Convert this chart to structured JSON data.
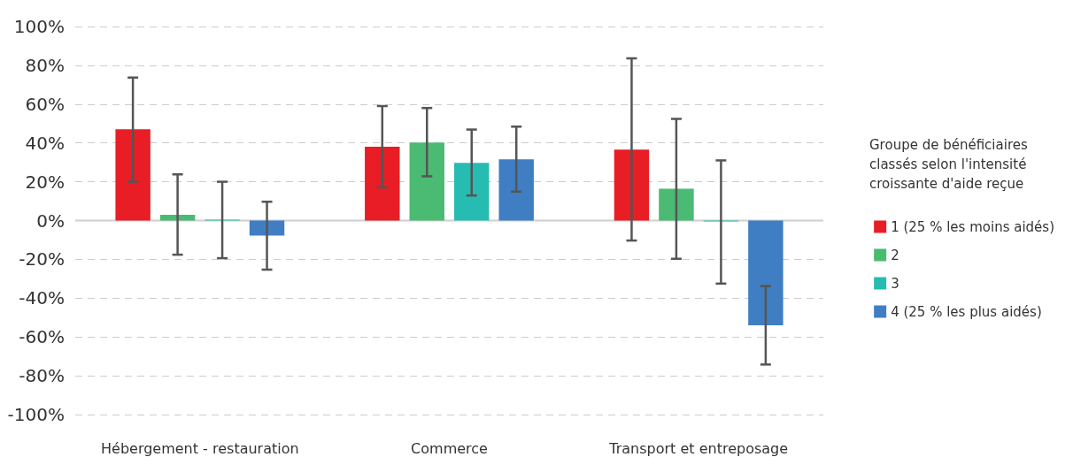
{
  "chart_data": {
    "type": "bar",
    "categories": [
      "Hébergement - restauration",
      "Commerce",
      "Transport et entreposage"
    ],
    "legend_title": "Groupe de bénéficiaires classés selon l'intensité croissante d'aide reçue",
    "series": [
      {
        "name": "1 (25 % les moins aidés)",
        "color": "#e81d25",
        "values": [
          47,
          38,
          36.6
        ],
        "errors": [
          [
            20,
            73.7
          ],
          [
            17.1,
            59
          ],
          [
            -10.3,
            83.6
          ]
        ]
      },
      {
        "name": "2",
        "color": "#4bba73",
        "values": [
          3,
          40.2,
          16.4
        ],
        "errors": [
          [
            -17.6,
            23.8
          ],
          [
            22.8,
            58
          ],
          [
            -19.7,
            52.4
          ]
        ]
      },
      {
        "name": "3",
        "color": "#27bcb2",
        "values": [
          0,
          29.7,
          -0.5
        ],
        "errors": [
          [
            -19.4,
            20
          ],
          [
            12.9,
            46.9
          ],
          [
            -32.5,
            31
          ]
        ]
      },
      {
        "name": "4 (25 % les plus aidés)",
        "color": "#3f7ec3",
        "values": [
          -7.7,
          31.6,
          -54
        ],
        "errors": [
          [
            -25.3,
            9.7
          ],
          [
            14.9,
            48.4
          ],
          [
            -74.2,
            -33.8
          ]
        ]
      }
    ],
    "ylim": [
      -100,
      100
    ],
    "yticks": [
      {
        "value": -100,
        "label": "-100%"
      },
      {
        "value": -80,
        "label": "-80%"
      },
      {
        "value": -60,
        "label": "-60%"
      },
      {
        "value": -40,
        "label": "-40%"
      },
      {
        "value": -20,
        "label": "-20%"
      },
      {
        "value": 0,
        "label": "0%"
      },
      {
        "value": 20,
        "label": "20%"
      },
      {
        "value": 40,
        "label": "40%"
      },
      {
        "value": 60,
        "label": "60%"
      },
      {
        "value": 80,
        "label": "80%"
      },
      {
        "value": 100,
        "label": "100%"
      }
    ],
    "grid": "y",
    "legend": "right"
  }
}
